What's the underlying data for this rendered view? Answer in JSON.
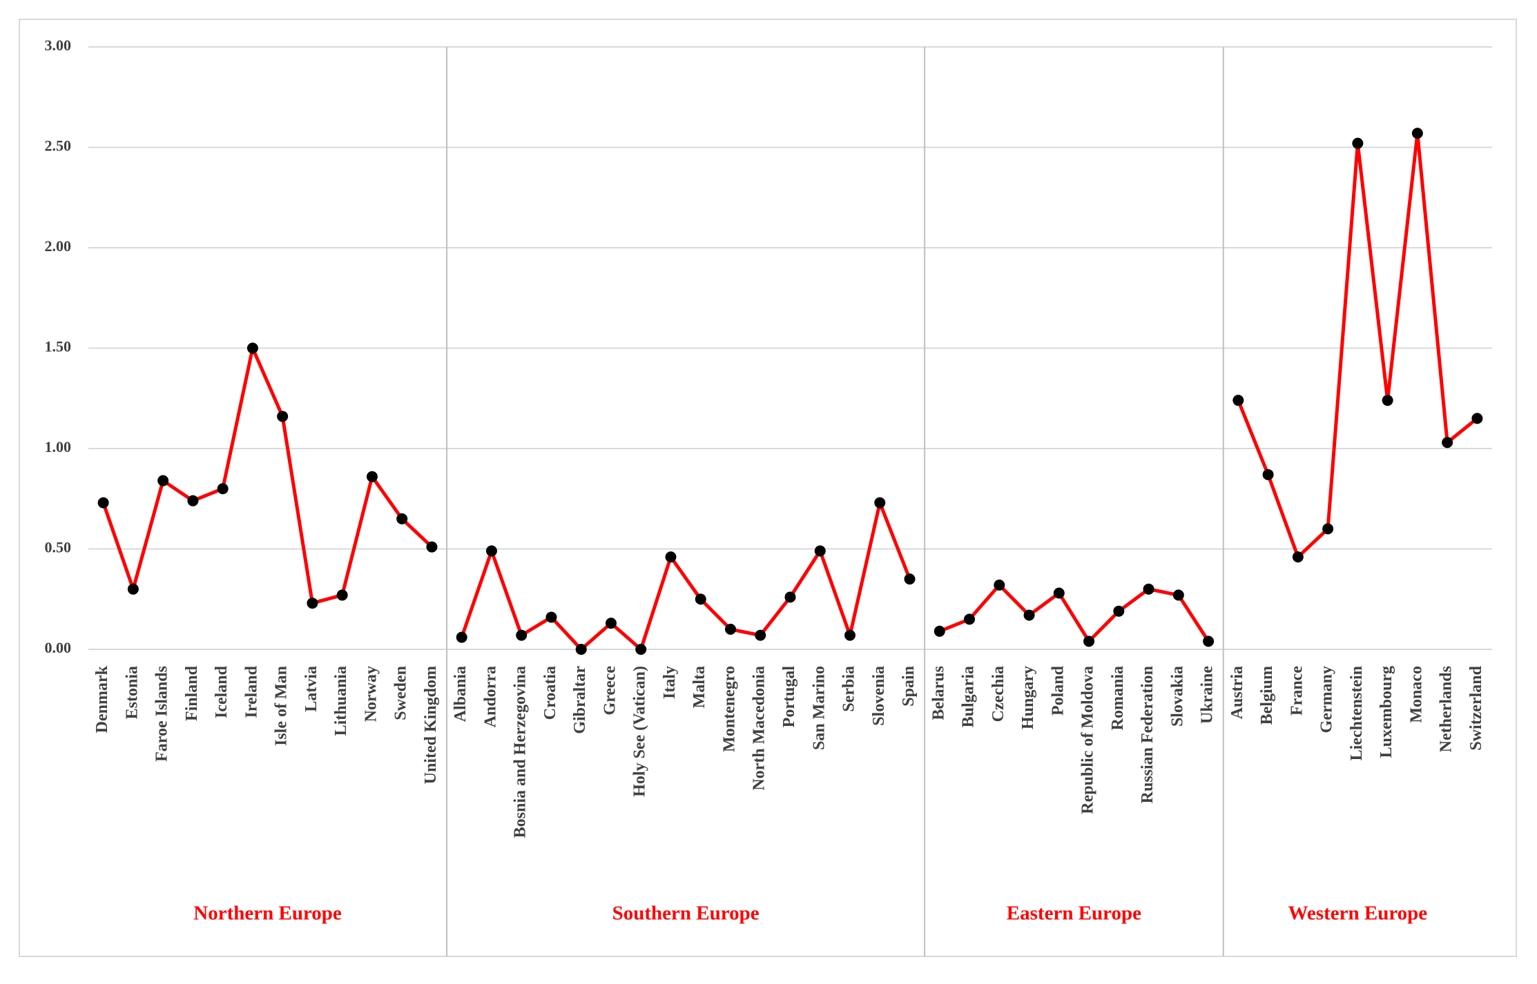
{
  "chart_data": {
    "type": "line",
    "color": "#ff0000",
    "marker_color": "#000000",
    "group_label_color": "#ff0000",
    "ylim": [
      0,
      3
    ],
    "yticks": [
      {
        "value": 0,
        "label": "0.00"
      },
      {
        "value": 0.5,
        "label": "0.50"
      },
      {
        "value": 1,
        "label": "1.00"
      },
      {
        "value": 1.5,
        "label": "1.50"
      },
      {
        "value": 2,
        "label": "2.00"
      },
      {
        "value": 2.5,
        "label": "2.50"
      },
      {
        "value": 3,
        "label": "3.00"
      }
    ],
    "grid": true,
    "groups": [
      {
        "name": "Northern Europe",
        "categories": [
          "Denmark",
          "Estonia",
          "Faroe Islands",
          "Finland",
          "Iceland",
          "Ireland",
          "Isle of Man",
          "Latvia",
          "Lithuania",
          "Norway",
          "Sweden",
          "United Kingdom"
        ],
        "values": [
          0.73,
          0.3,
          0.84,
          0.74,
          0.8,
          1.5,
          1.16,
          0.23,
          0.27,
          0.86,
          0.65,
          0.51
        ]
      },
      {
        "name": "Southern Europe",
        "categories": [
          "Albania",
          "Andorra",
          "Bosnia and Herzegovina",
          "Croatia",
          "Gibraltar",
          "Greece",
          "Holy See (Vatican)",
          "Italy",
          "Malta",
          "Montenegro",
          "North Macedonia",
          "Portugal",
          "San Marino",
          "Serbia",
          "Slovenia",
          "Spain"
        ],
        "values": [
          0.06,
          0.49,
          0.07,
          0.16,
          0.0,
          0.13,
          0.0,
          0.46,
          0.25,
          0.1,
          0.07,
          0.26,
          0.49,
          0.07,
          0.73,
          0.35
        ]
      },
      {
        "name": "Eastern Europe",
        "categories": [
          "Belarus",
          "Bulgaria",
          "Czechia",
          "Hungary",
          "Poland",
          "Republic of Moldova",
          "Romania",
          "Russian Federation",
          "Slovakia",
          "Ukraine"
        ],
        "values": [
          0.09,
          0.15,
          0.32,
          0.17,
          0.28,
          0.04,
          0.19,
          0.3,
          0.27,
          0.04
        ]
      },
      {
        "name": "Western Europe",
        "categories": [
          "Austria",
          "Belgium",
          "France",
          "Germany",
          "Liechtenstein",
          "Luxembourg",
          "Monaco",
          "Netherlands",
          "Switzerland"
        ],
        "values": [
          1.24,
          0.87,
          0.46,
          0.6,
          2.52,
          1.24,
          2.57,
          1.03,
          1.15
        ]
      }
    ]
  }
}
